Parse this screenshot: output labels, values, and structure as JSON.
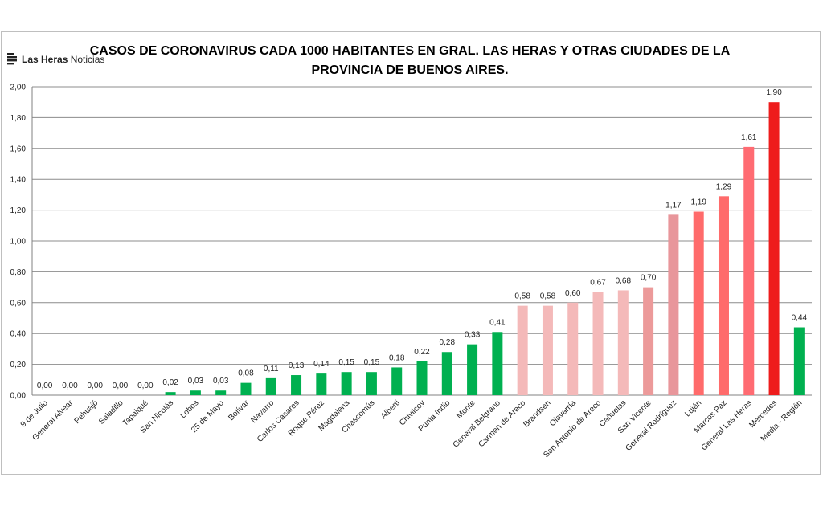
{
  "logo": {
    "brand": "Las Heras",
    "suffix": "Noticias"
  },
  "chart_data": {
    "type": "bar",
    "title_line1": "CASOS DE CORONAVIRUS CADA 1000 HABITANTES EN GRAL. LAS HERAS Y OTRAS CIUDADES DE LA",
    "title_line2": "PROVINCIA DE BUENOS AIRES.",
    "xlabel": "",
    "ylabel": "",
    "ylim": [
      0,
      2.0
    ],
    "y_ticks": [
      "0,00",
      "0,20",
      "0,40",
      "0,60",
      "0,80",
      "1,00",
      "1,20",
      "1,40",
      "1,60",
      "1,80",
      "2,00"
    ],
    "grid": true,
    "legend": "none",
    "categories": [
      "9 de Julio",
      "General Alvear",
      "Pehuajó",
      "Saladillo",
      "Tapalqué",
      "San Nicolás",
      "Lobos",
      "25 de Mayo",
      "Bolívar",
      "Navarro",
      "Carlos Casares",
      "Roque Pérez",
      "Magdalena",
      "Chascomús",
      "Alberti",
      "Chivilcoy",
      "Punta Indio",
      "Monte",
      "General Belgrano",
      "Carmen de Areco",
      "Brandsen",
      "Olavarría",
      "San Antonio de Areco",
      "Cañuelas",
      "San Vicente",
      "General Rodríguez",
      "Luján",
      "Marcos Paz",
      "General Las Heras",
      "Mercedes",
      "Media - Región"
    ],
    "values": [
      0.0,
      0.0,
      0.0,
      0.0,
      0.0,
      0.02,
      0.03,
      0.03,
      0.08,
      0.11,
      0.13,
      0.14,
      0.15,
      0.15,
      0.18,
      0.22,
      0.28,
      0.33,
      0.41,
      0.58,
      0.58,
      0.6,
      0.67,
      0.68,
      0.7,
      1.17,
      1.19,
      1.29,
      1.61,
      1.9,
      0.44
    ],
    "value_labels": [
      "0,00",
      "0,00",
      "0,00",
      "0,00",
      "0,00",
      "0,02",
      "0,03",
      "0,03",
      "0,08",
      "0,11",
      "0,13",
      "0,14",
      "0,15",
      "0,15",
      "0,18",
      "0,22",
      "0,28",
      "0,33",
      "0,41",
      "0,58",
      "0,58",
      "0,60",
      "0,67",
      "0,68",
      "0,70",
      "1,17",
      "1,19",
      "1,29",
      "1,61",
      "1,90",
      "0,44"
    ],
    "colors": [
      "#00b050",
      "#00b050",
      "#00b050",
      "#00b050",
      "#00b050",
      "#00b050",
      "#00b050",
      "#00b050",
      "#00b050",
      "#00b050",
      "#00b050",
      "#00b050",
      "#00b050",
      "#00b050",
      "#00b050",
      "#00b050",
      "#00b050",
      "#00b050",
      "#00b050",
      "#f4b9b9",
      "#f4b9b9",
      "#f4b9b9",
      "#f4b9b9",
      "#f4b9b9",
      "#ec9a9a",
      "#e8969b",
      "#ff6b6b",
      "#ff6b6b",
      "#ff6b72",
      "#ee1c1c",
      "#00b050"
    ]
  }
}
